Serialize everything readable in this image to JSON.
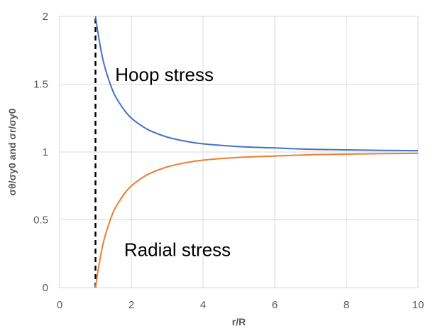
{
  "chart_data": {
    "type": "line",
    "xlabel": "r/R",
    "ylabel": "σθ/σy0 and σr/σy0",
    "xlim": [
      0,
      10
    ],
    "ylim": [
      0,
      2
    ],
    "x_ticks": [
      "0",
      "2",
      "4",
      "6",
      "8",
      "10"
    ],
    "y_ticks": [
      "0",
      "0.5",
      "1",
      "1.5",
      "2"
    ],
    "grid": true,
    "legend": "none",
    "series": [
      {
        "name": "Hoop stress",
        "color": "#4472C4",
        "x": [
          1,
          1.1,
          1.2,
          1.3,
          1.4,
          1.5,
          1.6,
          1.8,
          2,
          2.25,
          2.5,
          3,
          3.5,
          4,
          5,
          6,
          7,
          8,
          9,
          10
        ],
        "values": [
          2,
          1.83,
          1.69,
          1.59,
          1.51,
          1.44,
          1.39,
          1.31,
          1.25,
          1.2,
          1.16,
          1.11,
          1.08,
          1.06,
          1.04,
          1.03,
          1.02,
          1.016,
          1.012,
          1.01
        ]
      },
      {
        "name": "Radial stress",
        "color": "#ED7D31",
        "x": [
          1,
          1.1,
          1.2,
          1.3,
          1.4,
          1.5,
          1.6,
          1.8,
          2,
          2.25,
          2.5,
          3,
          3.5,
          4,
          5,
          6,
          7,
          8,
          9,
          10
        ],
        "values": [
          0,
          0.17,
          0.31,
          0.41,
          0.49,
          0.56,
          0.61,
          0.69,
          0.75,
          0.8,
          0.84,
          0.89,
          0.92,
          0.94,
          0.96,
          0.97,
          0.98,
          0.984,
          0.988,
          0.99
        ]
      }
    ],
    "reference_line": {
      "x": 1,
      "style": "dashed",
      "color": "#000000"
    },
    "annotations": [
      {
        "text": "Hoop stress",
        "x": 1.55,
        "y": 1.57
      },
      {
        "text": "Radial stress",
        "x": 1.8,
        "y": 0.28
      }
    ]
  }
}
